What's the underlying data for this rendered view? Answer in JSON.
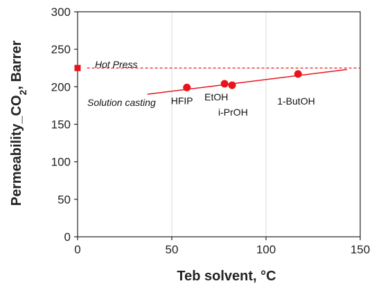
{
  "chart_data": {
    "type": "scatter",
    "xlabel": "Teb solvent, °C",
    "ylabel_main": "Permeability_CO",
    "ylabel_sub": "2",
    "ylabel_tail": ", Barrer",
    "xlim": [
      0,
      150
    ],
    "ylim": [
      0,
      300
    ],
    "xticks": [
      0,
      50,
      100,
      150
    ],
    "yticks": [
      0,
      50,
      100,
      150,
      200,
      250,
      300
    ],
    "grid": "vertical",
    "colors": {
      "series": "#e8141b",
      "axis": "#222222",
      "grid": "#d9d9d9"
    },
    "series": [
      {
        "marker": "circle",
        "points": [
          {
            "x": 58,
            "y": 199,
            "label": "HFIP"
          },
          {
            "x": 78,
            "y": 204,
            "label": "EtOH"
          },
          {
            "x": 82,
            "y": 202,
            "label": "i-PrOH"
          },
          {
            "x": 117,
            "y": 217,
            "label": "1-ButOH"
          }
        ]
      },
      {
        "marker": "square",
        "points": [
          {
            "x": 0,
            "y": 225
          }
        ]
      }
    ],
    "trendline": {
      "x": [
        37,
        143
      ],
      "y": [
        190,
        223
      ]
    },
    "reference_line": {
      "y": 225,
      "x": [
        5,
        150
      ]
    },
    "annotations": {
      "hot_press": "Hot Press",
      "solution_casting": "Solution casting"
    }
  }
}
